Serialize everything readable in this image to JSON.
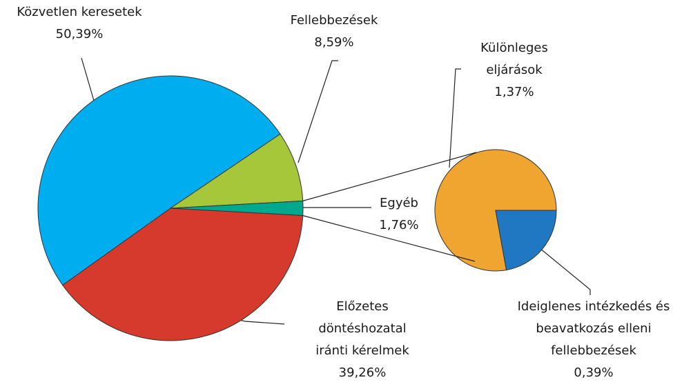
{
  "chart_data": {
    "type": "pie-of-pie",
    "categories": [
      "Közvetlen keresetek",
      "Fellebbezések",
      "Egyéb",
      "Előzetes döntéshozatal iránti kérelmek"
    ],
    "values": [
      50.39,
      8.59,
      1.76,
      39.26
    ],
    "value_labels": [
      "50,39%",
      "8,59%",
      "1,76%",
      "39,26%"
    ],
    "colors": [
      "#00aeef",
      "#a6c73a",
      "#00a88e",
      "#d63a2c"
    ],
    "breakdown": {
      "categories": [
        "Különleges eljárások",
        "Ideiglenes intézkedés és beavatkozás elleni fellebbezések"
      ],
      "values": [
        1.37,
        0.39
      ],
      "value_labels": [
        "1,37%",
        "0,39%"
      ],
      "colors": [
        "#f0a530",
        "#1f78c1"
      ]
    }
  }
}
